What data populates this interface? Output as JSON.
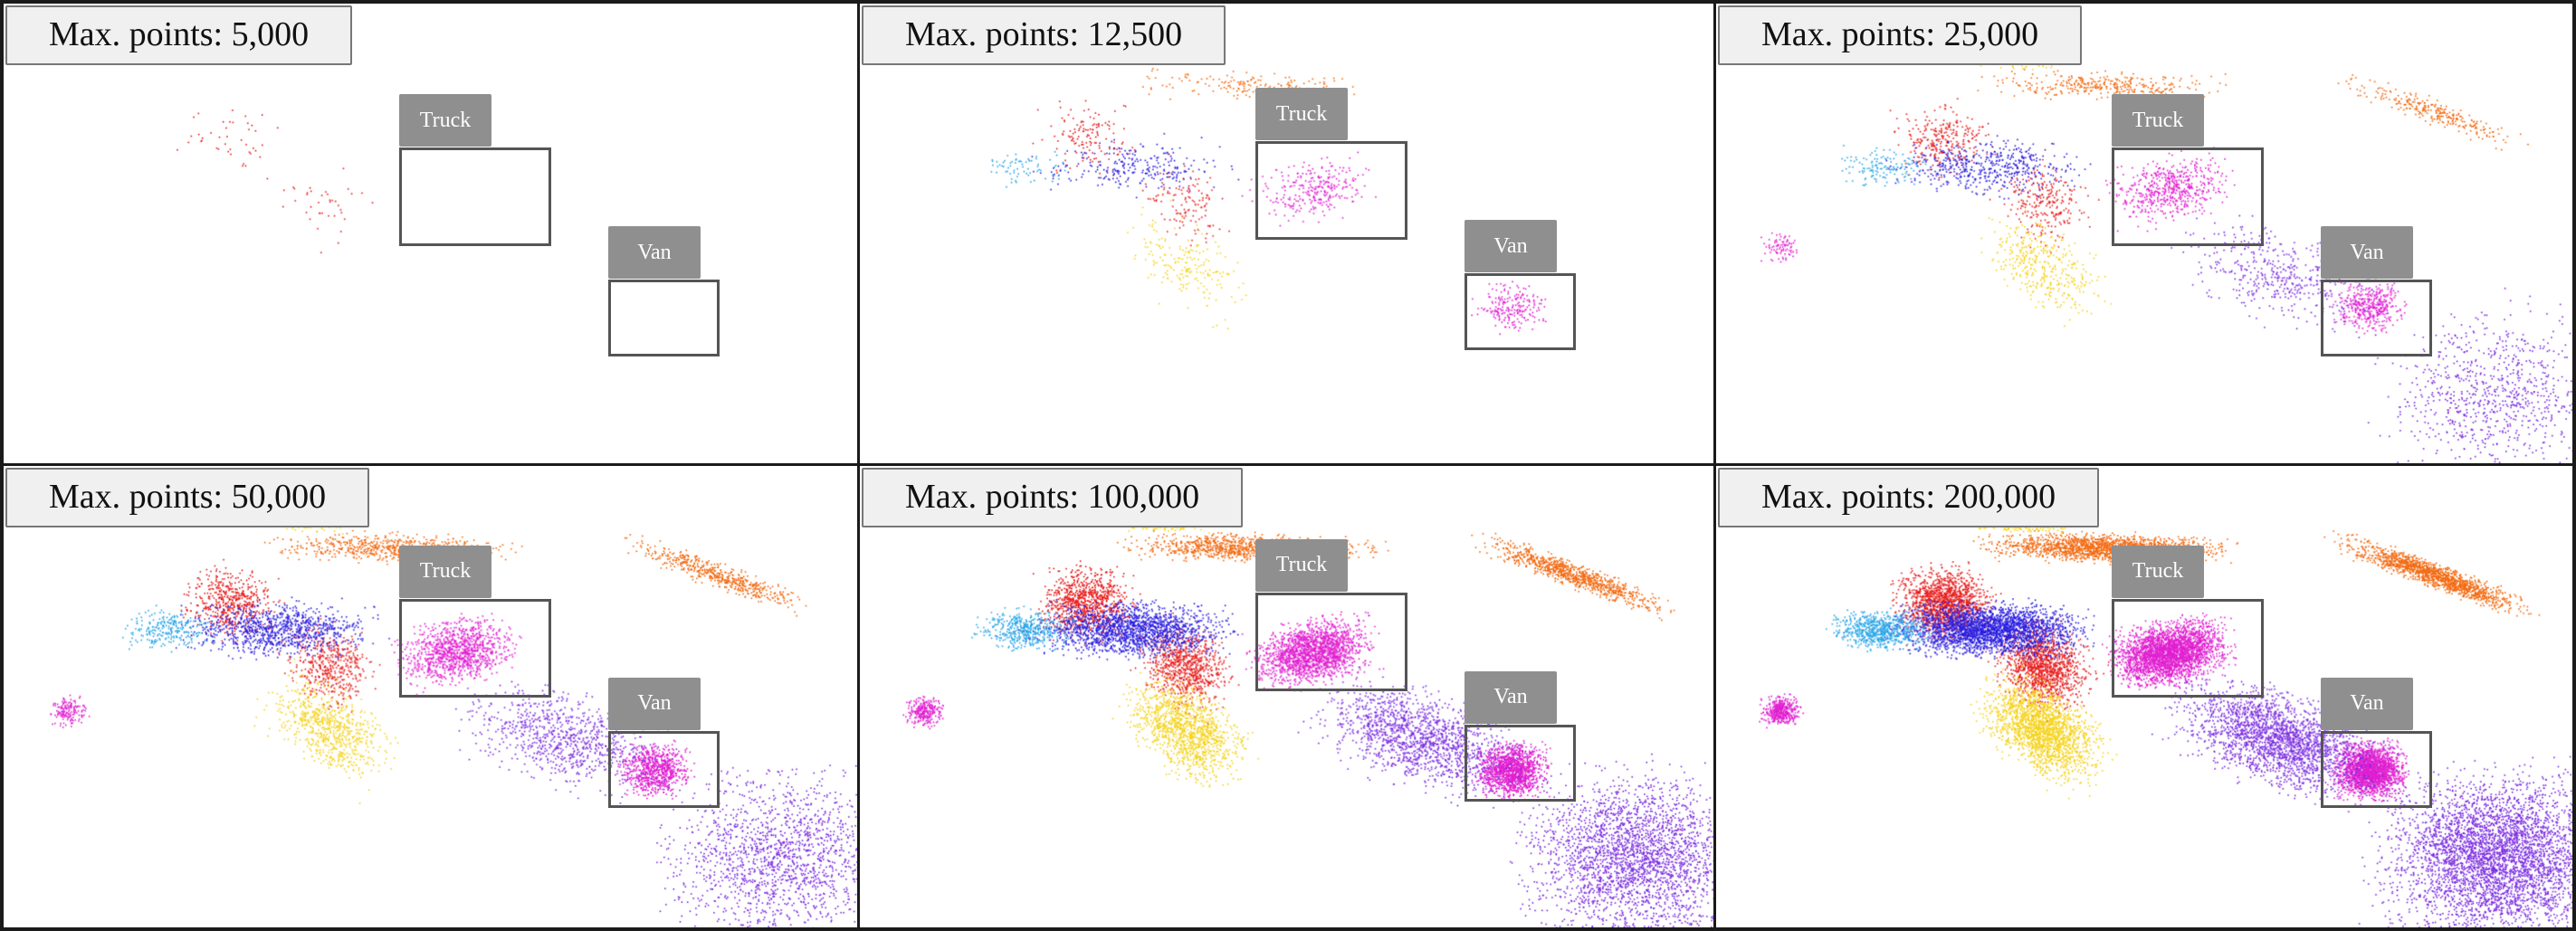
{
  "panels": [
    {
      "caption": "Max. points: 5,000",
      "level": 1
    },
    {
      "caption": "Max. points: 12,500",
      "level": 2
    },
    {
      "caption": "Max. points: 25,000",
      "level": 3
    },
    {
      "caption": "Max. points: 50,000",
      "level": 4
    },
    {
      "caption": "Max. points: 100,000",
      "level": 5
    },
    {
      "caption": "Max. points: 200,000",
      "level": 6
    }
  ],
  "labels": {
    "truck": "Truck",
    "van": "Van"
  },
  "colors": {
    "near": "#e81c1c",
    "orange": "#f26a12",
    "yellow": "#f5d21a",
    "blue": "#2a1ee0",
    "violet": "#7a2be0",
    "magenta": "#e01fd0",
    "cyan": "#2aa6e6",
    "box": "#555555",
    "label_bg": "#8f8f8f"
  }
}
